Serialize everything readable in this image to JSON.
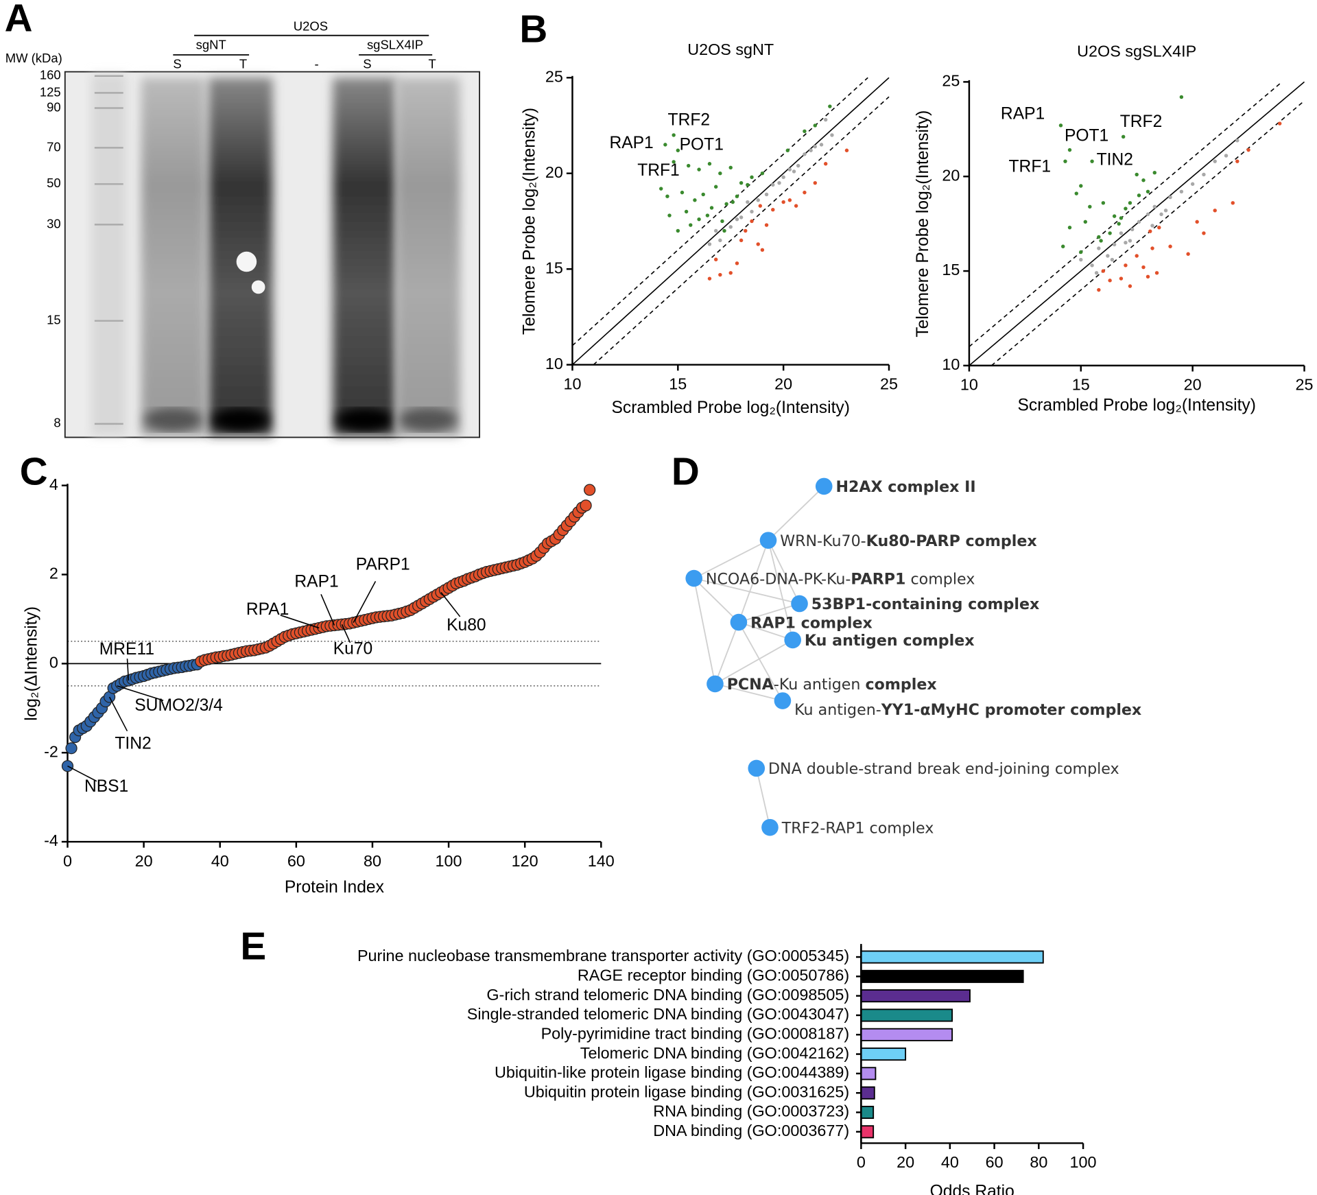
{
  "panel_labels": [
    "A",
    "B",
    "C",
    "D",
    "E"
  ],
  "gel": {
    "title": "U2OS",
    "groups": [
      "sgNT",
      "sgSLX4IP"
    ],
    "lanes": [
      "S",
      "T",
      "-",
      "S",
      "T"
    ],
    "mw_title": "MW (kDa)",
    "mw_labels": [
      160,
      125,
      90,
      70,
      50,
      30,
      15,
      8
    ]
  },
  "chart_data": [
    {
      "type": "scatter",
      "title": "U2OS sgNT",
      "xlabel": "Scrambled Probe log₂(Intensity)",
      "ylabel": "Telomere Probe log₂(Intensity)",
      "xlim": [
        10,
        25
      ],
      "ylim": [
        10,
        25
      ],
      "xticks": [
        10,
        15,
        20,
        25
      ],
      "yticks": [
        10,
        15,
        20,
        25
      ],
      "reference_lines": [
        {
          "offset": 0,
          "style": "solid"
        },
        {
          "offset": 1,
          "style": "dashed"
        },
        {
          "offset": -1,
          "style": "dashed"
        }
      ],
      "series": [
        {
          "color": "#3a8a2e",
          "x": [
            14.8,
            14.4,
            15.0,
            14.8,
            15.5,
            16.0,
            16.5,
            17.0,
            17.5,
            18.0,
            14.2,
            14.5,
            15.2,
            15.8,
            16.2,
            16.8,
            17.3,
            17.8,
            18.3,
            14.6,
            15.4,
            16.0,
            16.6,
            17.1,
            17.6,
            18.5,
            15.0,
            15.6,
            16.4,
            17.2,
            19.0,
            20.2,
            21.0,
            21.5,
            22.2
          ],
          "values": [
            22.0,
            21.5,
            21.2,
            20.6,
            20.4,
            20.2,
            20.5,
            20.0,
            20.3,
            19.5,
            19.2,
            18.8,
            19.0,
            18.6,
            18.9,
            19.3,
            18.4,
            18.8,
            19.4,
            17.8,
            18.0,
            17.6,
            18.2,
            17.5,
            18.5,
            19.8,
            17.0,
            17.3,
            17.8,
            17.0,
            20.0,
            21.2,
            22.2,
            22.5,
            23.5
          ]
        },
        {
          "color": "#a8a8a8",
          "x": [
            16.5,
            17.0,
            17.5,
            18.0,
            18.3,
            18.8,
            19.2,
            19.5,
            20.0,
            20.3,
            20.7,
            21.0,
            21.3,
            21.8,
            22.3,
            16.8,
            17.8,
            18.5,
            19.8,
            20.5,
            21.5,
            22.0
          ],
          "values": [
            16.3,
            16.5,
            17.2,
            17.7,
            18.5,
            18.6,
            18.9,
            19.4,
            19.8,
            20.2,
            20.4,
            21.0,
            21.2,
            21.5,
            22.0,
            17.0,
            17.6,
            18.0,
            19.5,
            20.1,
            21.4,
            22.8
          ]
        },
        {
          "color": "#e2502a",
          "x": [
            16.5,
            17.0,
            17.8,
            18.0,
            18.2,
            18.5,
            18.8,
            19.0,
            19.2,
            19.5,
            20.0,
            20.3,
            20.6,
            21.0,
            21.5,
            22.0,
            23.0,
            16.8,
            17.5,
            18.9
          ],
          "values": [
            14.5,
            14.7,
            15.3,
            16.5,
            17.0,
            17.5,
            16.3,
            16.0,
            17.3,
            18.1,
            18.5,
            18.6,
            18.3,
            19.0,
            19.5,
            20.5,
            21.2,
            15.5,
            14.8,
            18.3
          ]
        }
      ],
      "annotations": [
        {
          "text": "TRF2",
          "x": 14.8,
          "y": 22.0
        },
        {
          "text": "RAP1",
          "x": 14.4,
          "y": 21.5
        },
        {
          "text": "POT1",
          "x": 15.0,
          "y": 21.2
        },
        {
          "text": "TRF1",
          "x": 14.8,
          "y": 20.6
        }
      ]
    },
    {
      "type": "scatter",
      "title": "U2OS sgSLX4IP",
      "xlabel": "Scrambled Probe log₂(Intensity)",
      "ylabel": "Telomere Probe log₂(Intensity)",
      "xlim": [
        10,
        25
      ],
      "ylim": [
        10,
        25
      ],
      "xticks": [
        10,
        15,
        20,
        25
      ],
      "yticks": [
        10,
        15,
        20,
        25
      ],
      "reference_lines": [
        {
          "offset": 0,
          "style": "solid"
        },
        {
          "offset": 1,
          "style": "dashed"
        },
        {
          "offset": -1,
          "style": "dashed"
        }
      ],
      "series": [
        {
          "color": "#3a8a2e",
          "x": [
            14.1,
            14.5,
            16.9,
            15.5,
            14.3,
            19.5,
            17.5,
            17.8,
            18.3,
            15.0,
            14.8,
            15.4,
            16.0,
            16.5,
            17.0,
            17.2,
            14.5,
            15.2,
            15.8,
            16.3,
            16.7,
            14.2,
            15.0,
            15.9,
            16.8,
            17.6,
            18.0
          ],
          "values": [
            22.7,
            21.4,
            22.1,
            20.8,
            20.8,
            24.2,
            20.1,
            19.8,
            20.2,
            19.5,
            19.1,
            18.4,
            18.6,
            17.9,
            18.3,
            18.6,
            17.3,
            17.6,
            16.8,
            17.0,
            17.5,
            16.3,
            16.0,
            16.6,
            17.8,
            19.0,
            19.2
          ]
        },
        {
          "color": "#a8a8a8",
          "x": [
            15.0,
            15.5,
            15.8,
            16.2,
            16.5,
            16.8,
            17.0,
            17.3,
            17.6,
            18.0,
            18.3,
            18.6,
            19.0,
            19.5,
            20.0,
            20.5,
            21.0,
            21.5,
            22.0,
            15.7,
            16.4,
            17.2,
            18.2,
            18.8
          ],
          "values": [
            15.6,
            15.3,
            16.2,
            15.8,
            16.4,
            17.0,
            16.5,
            17.2,
            17.6,
            18.0,
            18.4,
            18.0,
            18.9,
            19.2,
            19.6,
            20.1,
            20.8,
            21.1,
            21.9,
            14.9,
            15.6,
            16.6,
            17.4,
            18.2
          ]
        },
        {
          "color": "#e2502a",
          "x": [
            15.8,
            16.3,
            16.8,
            17.0,
            17.5,
            17.8,
            18.0,
            18.2,
            18.5,
            19.0,
            19.8,
            20.2,
            21.0,
            21.8,
            22.0,
            22.5,
            23.9,
            16.0,
            17.2,
            18.4,
            20.5,
            18.1
          ],
          "values": [
            14.0,
            14.5,
            14.6,
            15.3,
            15.8,
            15.2,
            14.7,
            16.2,
            17.3,
            16.3,
            15.9,
            17.6,
            18.2,
            18.6,
            20.8,
            21.4,
            22.8,
            15.0,
            14.2,
            14.9,
            17.0,
            17.1
          ]
        }
      ],
      "annotations": [
        {
          "text": "RAP1",
          "x": 14.1,
          "y": 22.7
        },
        {
          "text": "POT1",
          "x": 14.5,
          "y": 21.4
        },
        {
          "text": "TRF2",
          "x": 16.9,
          "y": 22.1
        },
        {
          "text": "TIN2",
          "x": 15.5,
          "y": 20.8
        },
        {
          "text": "TRF1",
          "x": 14.3,
          "y": 20.8
        }
      ]
    },
    {
      "type": "scatter",
      "marker": "outlined",
      "xlabel": "Protein Index",
      "ylabel": "log₂(ΔIntensity)",
      "xlim": [
        0,
        140
      ],
      "ylim": [
        -4,
        4
      ],
      "xticks": [
        0,
        20,
        40,
        60,
        80,
        100,
        120,
        140
      ],
      "yticks": [
        -4,
        -2,
        0,
        2,
        4
      ],
      "hlines": [
        {
          "y": 0,
          "style": "solid"
        },
        {
          "y": 0.5,
          "style": "dotted"
        },
        {
          "y": -0.5,
          "style": "dotted"
        }
      ],
      "series": [
        {
          "color": "#2f64a8",
          "x": [
            0,
            1,
            2,
            3,
            4,
            5,
            6,
            7,
            8,
            9,
            10,
            11,
            12,
            13,
            14,
            15,
            16,
            17,
            18,
            19,
            20,
            21,
            22,
            23,
            24,
            25,
            26,
            27,
            28,
            29,
            30,
            31,
            32,
            33,
            34
          ],
          "values": [
            -2.3,
            -1.9,
            -1.65,
            -1.5,
            -1.45,
            -1.4,
            -1.3,
            -1.2,
            -1.1,
            -1.0,
            -0.85,
            -0.75,
            -0.55,
            -0.5,
            -0.45,
            -0.4,
            -0.38,
            -0.35,
            -0.32,
            -0.3,
            -0.28,
            -0.25,
            -0.22,
            -0.2,
            -0.18,
            -0.16,
            -0.14,
            -0.12,
            -0.1,
            -0.09,
            -0.08,
            -0.06,
            -0.05,
            -0.03,
            -0.02
          ]
        },
        {
          "color": "#e2502a",
          "x": [
            35,
            36,
            37,
            38,
            39,
            40,
            41,
            42,
            43,
            44,
            45,
            46,
            47,
            48,
            49,
            50,
            51,
            52,
            53,
            54,
            55,
            56,
            57,
            58,
            59,
            60,
            61,
            62,
            63,
            64,
            65,
            66,
            67,
            68,
            69,
            70,
            71,
            72,
            73,
            74,
            75,
            76,
            77,
            78,
            79,
            80,
            81,
            82,
            83,
            84,
            85,
            86,
            87,
            88,
            89,
            90,
            91,
            92,
            93,
            94,
            95,
            96,
            97,
            98,
            99,
            100,
            101,
            102,
            103,
            104,
            105,
            106,
            107,
            108,
            109,
            110,
            111,
            112,
            113,
            114,
            115,
            116,
            117,
            118,
            119,
            120,
            121,
            122,
            123,
            124,
            125,
            126,
            127,
            128,
            129,
            130,
            131,
            132,
            133,
            134,
            135,
            136,
            137
          ],
          "values": [
            0.05,
            0.08,
            0.1,
            0.12,
            0.14,
            0.15,
            0.17,
            0.18,
            0.2,
            0.22,
            0.24,
            0.26,
            0.28,
            0.29,
            0.3,
            0.32,
            0.34,
            0.36,
            0.4,
            0.45,
            0.5,
            0.55,
            0.6,
            0.63,
            0.66,
            0.68,
            0.7,
            0.72,
            0.74,
            0.76,
            0.78,
            0.8,
            0.82,
            0.84,
            0.85,
            0.86,
            0.87,
            0.88,
            0.89,
            0.9,
            0.92,
            0.94,
            0.96,
            0.98,
            1.0,
            1.02,
            1.04,
            1.05,
            1.06,
            1.07,
            1.08,
            1.1,
            1.12,
            1.14,
            1.17,
            1.2,
            1.25,
            1.3,
            1.35,
            1.4,
            1.45,
            1.5,
            1.55,
            1.6,
            1.65,
            1.7,
            1.75,
            1.8,
            1.83,
            1.86,
            1.9,
            1.93,
            1.96,
            2.0,
            2.03,
            2.06,
            2.08,
            2.1,
            2.12,
            2.14,
            2.16,
            2.18,
            2.2,
            2.22,
            2.25,
            2.28,
            2.32,
            2.36,
            2.42,
            2.5,
            2.6,
            2.7,
            2.75,
            2.8,
            2.9,
            3.0,
            3.1,
            3.2,
            3.3,
            3.4,
            3.5,
            3.55,
            3.9
          ]
        }
      ],
      "annotations": [
        {
          "text": "NBS1",
          "x": 0,
          "y": -2.3
        },
        {
          "text": "TIN2",
          "x": 11,
          "y": -0.75
        },
        {
          "text": "SUMO2/3/4",
          "x": 13,
          "y": -0.5
        },
        {
          "text": "MRE11",
          "x": 16,
          "y": -0.38
        },
        {
          "text": "RPA1",
          "x": 66,
          "y": 0.8
        },
        {
          "text": "RAP1",
          "x": 70,
          "y": 0.86
        },
        {
          "text": "Ku70",
          "x": 72,
          "y": 0.88
        },
        {
          "text": "PARP1",
          "x": 75,
          "y": 0.92
        },
        {
          "text": "Ku80",
          "x": 98,
          "y": 1.6
        }
      ]
    },
    {
      "type": "barh",
      "xlabel": "Odds Ratio",
      "xlim": [
        0,
        100
      ],
      "xticks": [
        0,
        20,
        40,
        60,
        80,
        100
      ],
      "categories": [
        "Purine nucleobase transmembrane transporter activity (GO:0005345)",
        "RAGE receptor binding (GO:0050786)",
        "G-rich strand telomeric DNA binding (GO:0098505)",
        "Single-stranded telomeric DNA binding (GO:0043047)",
        "Poly-pyrimidine tract binding (GO:0008187)",
        "Telomeric DNA binding (GO:0042162)",
        "Ubiquitin-like protein ligase binding (GO:0044389)",
        "Ubiquitin protein ligase binding (GO:0031625)",
        "RNA binding (GO:0003723)",
        "DNA binding (GO:0003677)"
      ],
      "values": [
        82,
        73,
        49,
        41,
        41,
        20,
        6.5,
        6,
        5.5,
        5.5
      ],
      "colors": [
        "#6ecff6",
        "#000000",
        "#5b2d90",
        "#1a8a8a",
        "#b48cf0",
        "#6ecff6",
        "#b48cf0",
        "#5b2d90",
        "#1a8a8a",
        "#e8336a"
      ]
    }
  ],
  "network": {
    "nodes": [
      {
        "label_parts": [
          {
            "text": "H2AX complex II",
            "bold": true
          }
        ]
      },
      {
        "label_parts": [
          {
            "text": "WRN-Ku70-",
            "bold": false
          },
          {
            "text": "Ku80-PARP complex",
            "bold": true
          }
        ]
      },
      {
        "label_parts": [
          {
            "text": "NCOA6-DNA-PK-Ku-",
            "bold": false
          },
          {
            "text": "PARP1",
            "bold": true
          },
          {
            "text": " complex",
            "bold": false
          }
        ]
      },
      {
        "label_parts": [
          {
            "text": "53BP1-containing complex",
            "bold": true
          }
        ]
      },
      {
        "label_parts": [
          {
            "text": "RAP1 complex",
            "bold": true
          }
        ]
      },
      {
        "label_parts": [
          {
            "text": "Ku antigen complex",
            "bold": true
          }
        ]
      },
      {
        "label_parts": [
          {
            "text": "PCNA",
            "bold": true
          },
          {
            "text": "-Ku antigen ",
            "bold": false
          },
          {
            "text": "complex",
            "bold": true
          }
        ]
      },
      {
        "label_parts": [
          {
            "text": "Ku antigen-",
            "bold": false
          },
          {
            "text": "YY1-αMyHC promoter complex",
            "bold": true
          }
        ]
      },
      {
        "label_parts": [
          {
            "text": "DNA double-strand break end-joining complex",
            "bold": false
          }
        ]
      },
      {
        "label_parts": [
          {
            "text": "TRF2-RAP1 complex",
            "bold": false
          }
        ]
      }
    ]
  }
}
